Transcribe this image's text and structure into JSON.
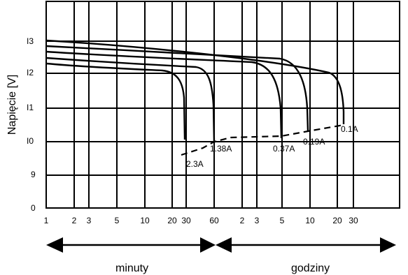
{
  "chart_data": {
    "type": "line",
    "title": "",
    "ylabel": "Napięcie [V]",
    "xscale": "log (minutes 1–60, then hours 2–30)",
    "grid": true,
    "y_tick_labels": [
      "0",
      "9",
      "I0",
      "I1",
      "I2",
      "I3"
    ],
    "x_tick_labels": [
      "1",
      "2",
      "3",
      "5",
      "10",
      "20",
      "30",
      "60",
      "2",
      "3",
      "5",
      "10",
      "20",
      "30"
    ],
    "series": [
      {
        "name": "2.3A",
        "cutoff_minutes": 30
      },
      {
        "name": "1.38A",
        "cutoff_minutes": 60
      },
      {
        "name": "0.37A",
        "cutoff_hours": 5
      },
      {
        "name": "0.19A",
        "cutoff_hours": 10
      },
      {
        "name": "0.1A",
        "cutoff_hours": 22
      }
    ],
    "end_voltage_line": "dashed",
    "range_labels": {
      "minutes": "minuty",
      "hours": "godziny"
    }
  }
}
